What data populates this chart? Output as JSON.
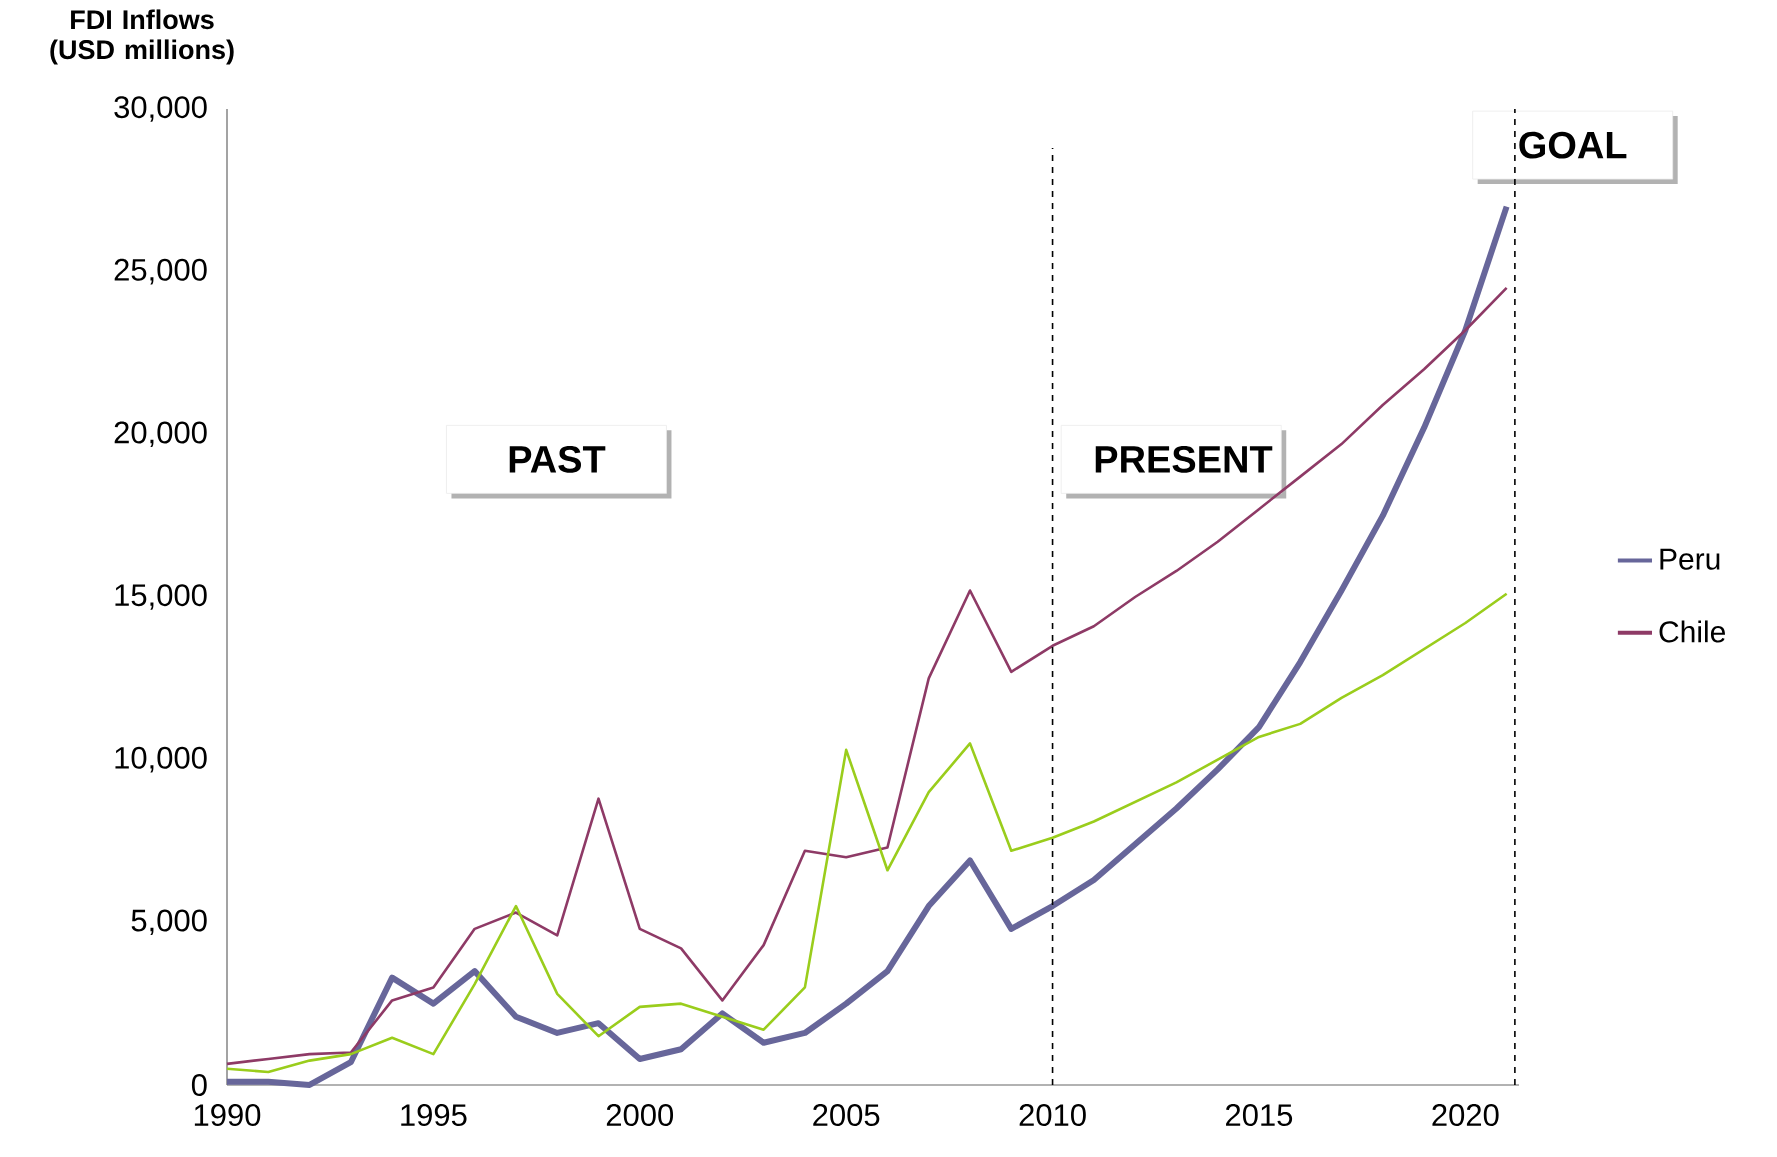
{
  "chart_data": {
    "type": "line",
    "ylabel": "FDI Inflows (USD millions)",
    "x": [
      1990,
      1991,
      1992,
      1993,
      1994,
      1995,
      1996,
      1997,
      1998,
      1999,
      2000,
      2001,
      2002,
      2003,
      2004,
      2005,
      2006,
      2007,
      2008,
      2009,
      2010,
      2011,
      2012,
      2013,
      2014,
      2015,
      2016,
      2017,
      2018,
      2019,
      2020,
      2021
    ],
    "series": [
      {
        "name": "Peru",
        "color": "#67669a",
        "values": [
          100,
          100,
          0,
          700,
          3300,
          2500,
          3500,
          2100,
          1600,
          1900,
          800,
          1100,
          2200,
          1300,
          1600,
          2500,
          3500,
          5500,
          6900,
          4800,
          5500,
          6300,
          7400,
          8500,
          9700,
          11000,
          13000,
          15200,
          17500,
          20200,
          23200,
          27000
        ]
      },
      {
        "name": "Chile",
        "color": "#8e3a66",
        "values": [
          650,
          800,
          950,
          1000,
          2600,
          3000,
          4800,
          5300,
          4600,
          8800,
          4800,
          4200,
          2600,
          4300,
          7200,
          7000,
          7300,
          12500,
          15200,
          12700,
          13500,
          14100,
          15000,
          15800,
          16700,
          17700,
          18700,
          19700,
          20900,
          22000,
          23200,
          24500
        ]
      },
      {
        "color": "#9acd1c",
        "values": [
          500,
          400,
          750,
          950,
          1450,
          950,
          3100,
          5500,
          2800,
          1500,
          2400,
          2500,
          2100,
          1700,
          3000,
          10300,
          6600,
          9000,
          10500,
          7200,
          7600,
          8100,
          8700,
          9300,
          10000,
          10700,
          11100,
          11900,
          12600,
          13400,
          14200,
          15100
        ]
      }
    ],
    "xlim": [
      1990,
      2021.3
    ],
    "xticks": [
      1990,
      1995,
      2000,
      2005,
      2010,
      2015,
      2020
    ],
    "ylim": [
      0,
      30000
    ],
    "yticks": [
      {
        "value": 0,
        "label": "0"
      },
      {
        "value": 5000,
        "label": "5,000"
      },
      {
        "value": 10000,
        "label": "10,000"
      },
      {
        "value": 15000,
        "label": "15,000"
      },
      {
        "value": 20000,
        "label": "20,000"
      },
      {
        "value": 25000,
        "label": "25,000"
      },
      {
        "value": 30000,
        "label": "30,000"
      }
    ],
    "ref_lines": [
      {
        "axis": "x",
        "value": 2010,
        "label": "PRESENT",
        "line_style": "dashed",
        "color": "#000000"
      },
      {
        "axis": "x",
        "value": 2021.2,
        "label": "GOAL",
        "line_style": "dashed",
        "color": "#000000"
      }
    ],
    "annotations": [
      "PAST"
    ],
    "legend": "right",
    "marker": "none",
    "line_style": "solid"
  }
}
